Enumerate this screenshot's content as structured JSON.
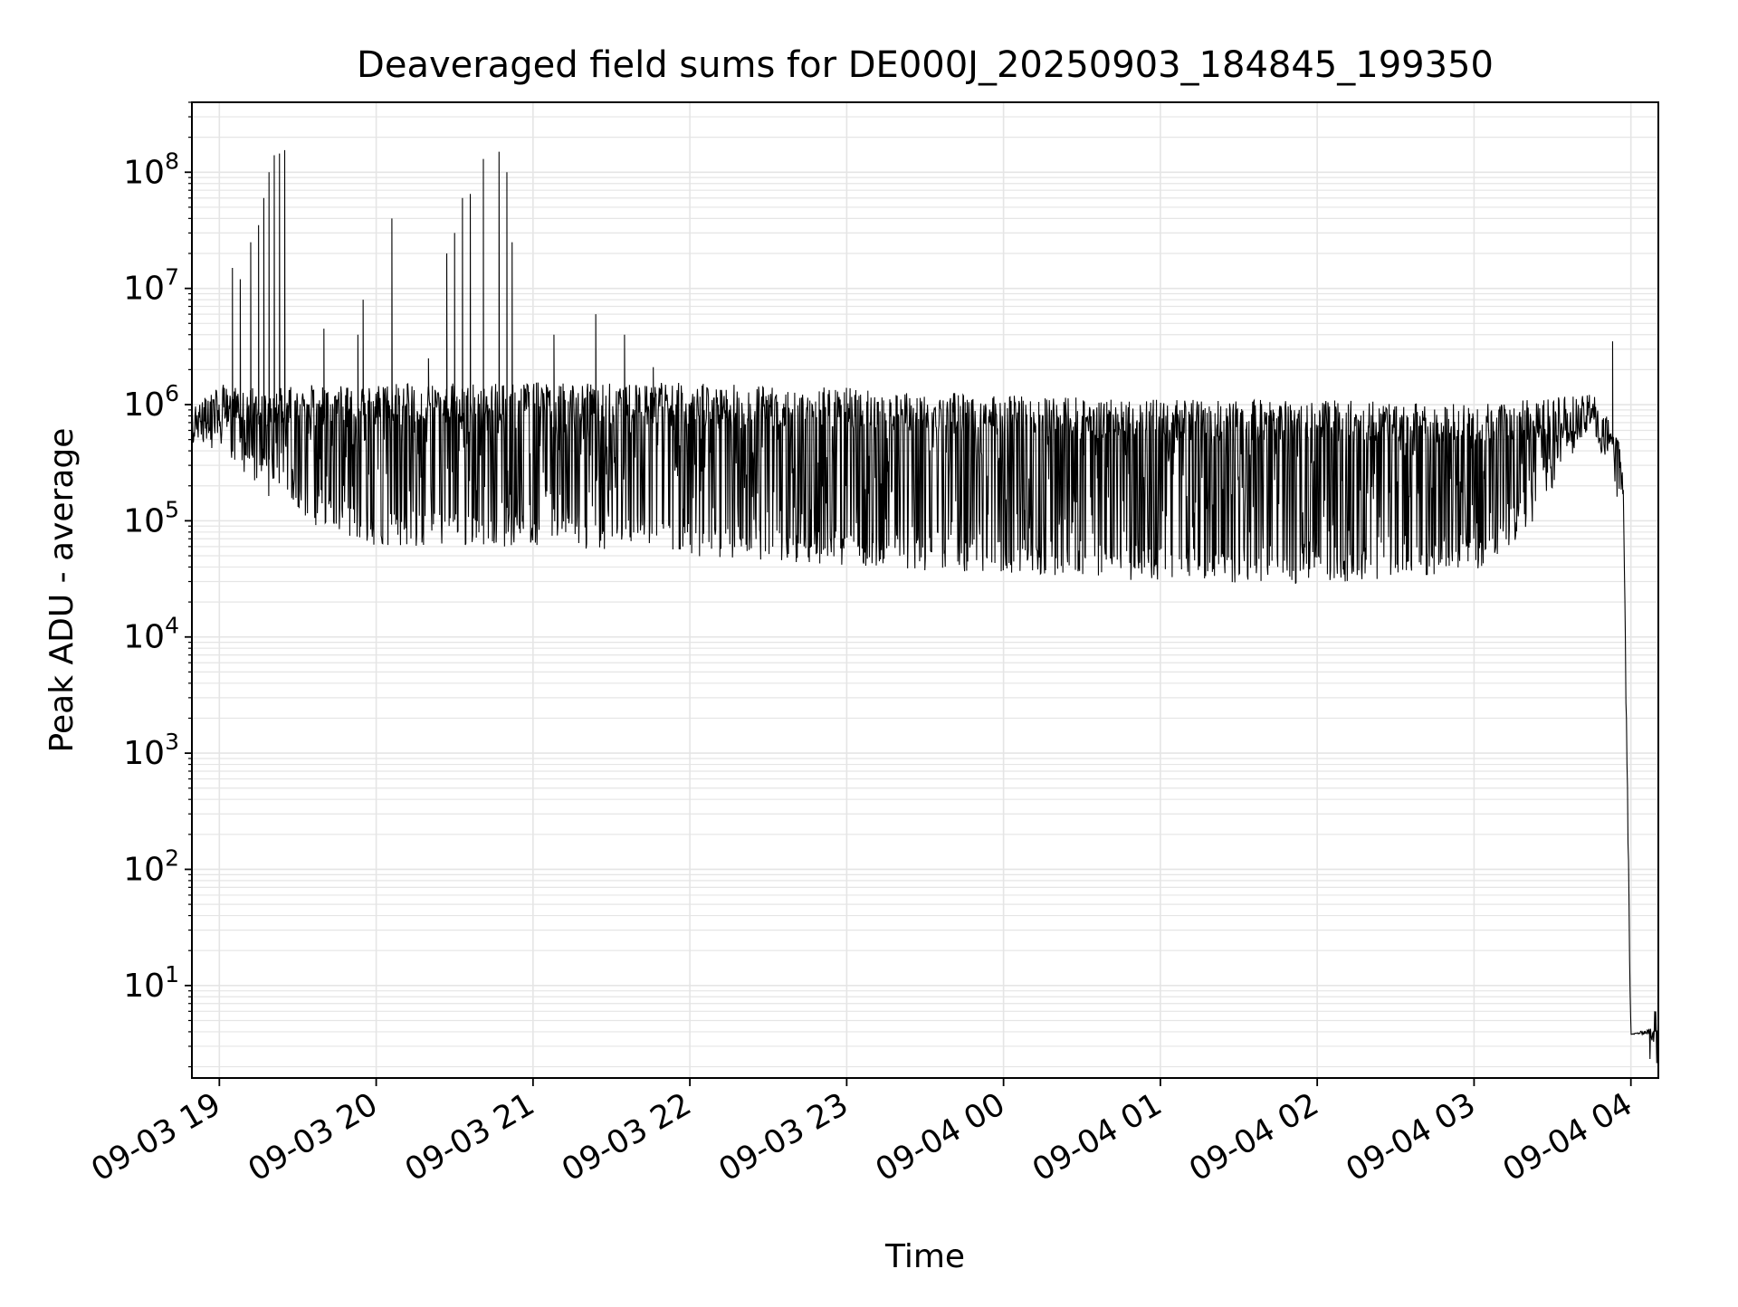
{
  "chart_data": {
    "type": "line",
    "title": "Deaveraged field sums for DE000J_20250903_184845_199350",
    "xlabel": "Time",
    "ylabel": "Peak ADU - average",
    "yscale": "log",
    "ylim": [
      1.6,
      400000000
    ],
    "xlim": [
      "2025-09-03 18:49:30",
      "2025-09-04 04:10:30"
    ],
    "grid": true,
    "x_ticks": [
      "09-03 19",
      "09-03 20",
      "09-03 21",
      "09-03 22",
      "09-03 23",
      "09-04 00",
      "09-04 01",
      "09-04 02",
      "09-04 03",
      "09-04 04"
    ],
    "y_ticks": [
      {
        "base": "10",
        "exp": "1",
        "value": 10
      },
      {
        "base": "10",
        "exp": "2",
        "value": 100
      },
      {
        "base": "10",
        "exp": "3",
        "value": 1000
      },
      {
        "base": "10",
        "exp": "4",
        "value": 10000
      },
      {
        "base": "10",
        "exp": "5",
        "value": 100000
      },
      {
        "base": "10",
        "exp": "6",
        "value": 1000000
      },
      {
        "base": "10",
        "exp": "7",
        "value": 10000000
      },
      {
        "base": "10",
        "exp": "8",
        "value": 100000000
      }
    ],
    "line_color": "#000000",
    "grid_color": "#e5e5e5",
    "series": [
      {
        "style": "thin black line, dense oscillation between baseline and envelope",
        "envelope_points": [
          {
            "x": "2025-09-03 18:49:30",
            "low": 450000,
            "high": 900000
          },
          {
            "x": "2025-09-03 19:00",
            "low": 400000,
            "high": 1500000
          },
          {
            "x": "2025-09-03 19:20",
            "low": 150000,
            "high": 1400000
          },
          {
            "x": "2025-09-03 19:40",
            "low": 80000,
            "high": 1500000
          },
          {
            "x": "2025-09-03 20:00",
            "low": 60000,
            "high": 1500000
          },
          {
            "x": "2025-09-03 21:00",
            "low": 60000,
            "high": 1550000
          },
          {
            "x": "2025-09-03 22:00",
            "low": 50000,
            "high": 1550000
          },
          {
            "x": "2025-09-03 23:00",
            "low": 40000,
            "high": 1400000
          },
          {
            "x": "2025-09-04 00:00",
            "low": 35000,
            "high": 1200000
          },
          {
            "x": "2025-09-04 01:00",
            "low": 30000,
            "high": 1100000
          },
          {
            "x": "2025-09-04 02:00",
            "low": 28000,
            "high": 1100000
          },
          {
            "x": "2025-09-04 03:00",
            "low": 35000,
            "high": 1000000
          },
          {
            "x": "2025-09-04 03:20",
            "low": 80000,
            "high": 1100000
          },
          {
            "x": "2025-09-04 03:45",
            "low": 700000,
            "high": 1300000
          },
          {
            "x": "2025-09-04 03:57",
            "low": 100000,
            "high": 500000
          },
          {
            "x": "2025-09-04 04:00",
            "low": 3.8,
            "high": 3.8
          },
          {
            "x": "2025-09-04 04:10:30",
            "low": 3.8,
            "high": 4.5
          }
        ],
        "spikes": [
          {
            "x": "2025-09-03 19:05",
            "y": 15000000
          },
          {
            "x": "2025-09-03 19:08",
            "y": 12000000
          },
          {
            "x": "2025-09-03 19:12",
            "y": 25000000
          },
          {
            "x": "2025-09-03 19:15",
            "y": 35000000
          },
          {
            "x": "2025-09-03 19:17",
            "y": 60000000
          },
          {
            "x": "2025-09-03 19:19",
            "y": 100000000
          },
          {
            "x": "2025-09-03 19:21",
            "y": 140000000
          },
          {
            "x": "2025-09-03 19:23",
            "y": 145000000
          },
          {
            "x": "2025-09-03 19:25",
            "y": 155000000
          },
          {
            "x": "2025-09-03 19:40",
            "y": 4500000
          },
          {
            "x": "2025-09-03 19:53",
            "y": 4000000
          },
          {
            "x": "2025-09-03 19:55",
            "y": 8000000
          },
          {
            "x": "2025-09-03 20:06",
            "y": 40000000
          },
          {
            "x": "2025-09-03 20:20",
            "y": 2500000
          },
          {
            "x": "2025-09-03 20:27",
            "y": 20000000
          },
          {
            "x": "2025-09-03 20:30",
            "y": 30000000
          },
          {
            "x": "2025-09-03 20:33",
            "y": 60000000
          },
          {
            "x": "2025-09-03 20:36",
            "y": 65000000
          },
          {
            "x": "2025-09-03 20:41",
            "y": 130000000
          },
          {
            "x": "2025-09-03 20:47",
            "y": 150000000
          },
          {
            "x": "2025-09-03 20:50",
            "y": 100000000
          },
          {
            "x": "2025-09-03 20:52",
            "y": 25000000
          },
          {
            "x": "2025-09-03 21:08",
            "y": 4000000
          },
          {
            "x": "2025-09-03 21:24",
            "y": 6000000
          },
          {
            "x": "2025-09-03 21:35",
            "y": 4000000
          },
          {
            "x": "2025-09-03 21:46",
            "y": 2100000
          },
          {
            "x": "2025-09-04 03:53",
            "y": 3500000
          }
        ]
      }
    ]
  }
}
